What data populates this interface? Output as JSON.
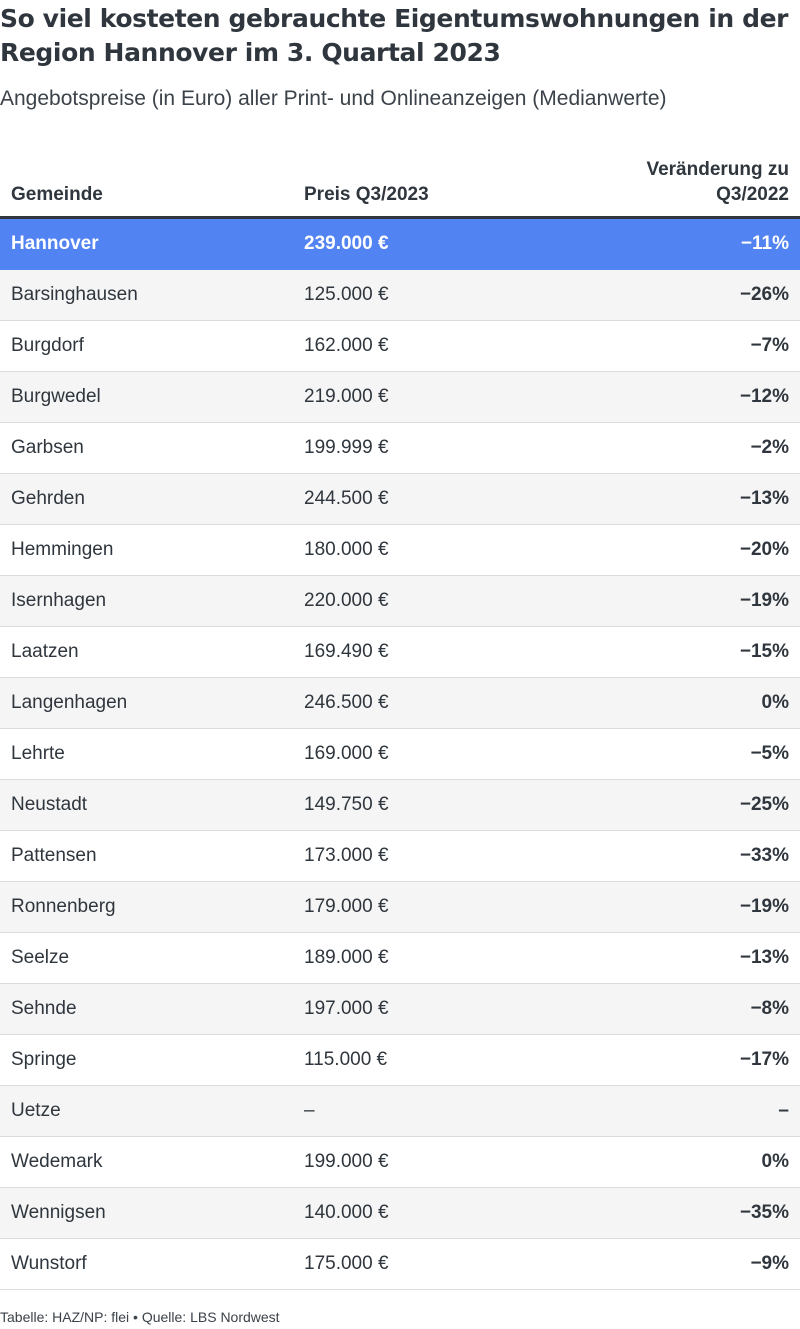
{
  "title": "So viel kosteten gebrauchte Eigentumswohnungen in der Region Hannover im 3. Quartal 2023",
  "subtitle": "Angebotspreise (in Euro) aller Print- und Onlineanzeigen (Medianwerte)",
  "footer": "Tabelle: HAZ/NP: flei • Quelle: LBS Nordwest",
  "chart_data": {
    "type": "table",
    "columns": [
      "Gemeinde",
      "Preis Q3/2023",
      "Veränderung zu Q3/2022"
    ],
    "header_change_line1": "Veränderung zu",
    "header_change_line2": "Q3/2022",
    "highlight_color": "#5283f2",
    "rows": [
      {
        "gemeinde": "Hannover",
        "preis": "239.000 €",
        "veraenderung": "−11%",
        "highlight": true
      },
      {
        "gemeinde": "Barsinghausen",
        "preis": "125.000 €",
        "veraenderung": "−26%"
      },
      {
        "gemeinde": "Burgdorf",
        "preis": "162.000 €",
        "veraenderung": "−7%"
      },
      {
        "gemeinde": "Burgwedel",
        "preis": "219.000 €",
        "veraenderung": "−12%"
      },
      {
        "gemeinde": "Garbsen",
        "preis": "199.999 €",
        "veraenderung": "−2%"
      },
      {
        "gemeinde": "Gehrden",
        "preis": "244.500 €",
        "veraenderung": "−13%"
      },
      {
        "gemeinde": "Hemmingen",
        "preis": "180.000 €",
        "veraenderung": "−20%"
      },
      {
        "gemeinde": "Isernhagen",
        "preis": "220.000 €",
        "veraenderung": "−19%"
      },
      {
        "gemeinde": "Laatzen",
        "preis": "169.490 €",
        "veraenderung": "−15%"
      },
      {
        "gemeinde": "Langenhagen",
        "preis": "246.500 €",
        "veraenderung": "0%"
      },
      {
        "gemeinde": "Lehrte",
        "preis": "169.000 €",
        "veraenderung": "−5%"
      },
      {
        "gemeinde": "Neustadt",
        "preis": "149.750 €",
        "veraenderung": "−25%"
      },
      {
        "gemeinde": "Pattensen",
        "preis": "173.000 €",
        "veraenderung": "−33%"
      },
      {
        "gemeinde": "Ronnenberg",
        "preis": "179.000 €",
        "veraenderung": "−19%"
      },
      {
        "gemeinde": "Seelze",
        "preis": "189.000 €",
        "veraenderung": "−13%"
      },
      {
        "gemeinde": "Sehnde",
        "preis": "197.000 €",
        "veraenderung": "−8%"
      },
      {
        "gemeinde": "Springe",
        "preis": "115.000 €",
        "veraenderung": "−17%"
      },
      {
        "gemeinde": "Uetze",
        "preis": "–",
        "veraenderung": "–"
      },
      {
        "gemeinde": "Wedemark",
        "preis": "199.000 €",
        "veraenderung": "0%"
      },
      {
        "gemeinde": "Wennigsen",
        "preis": "140.000 €",
        "veraenderung": "−35%"
      },
      {
        "gemeinde": "Wunstorf",
        "preis": "175.000 €",
        "veraenderung": "−9%"
      }
    ]
  }
}
